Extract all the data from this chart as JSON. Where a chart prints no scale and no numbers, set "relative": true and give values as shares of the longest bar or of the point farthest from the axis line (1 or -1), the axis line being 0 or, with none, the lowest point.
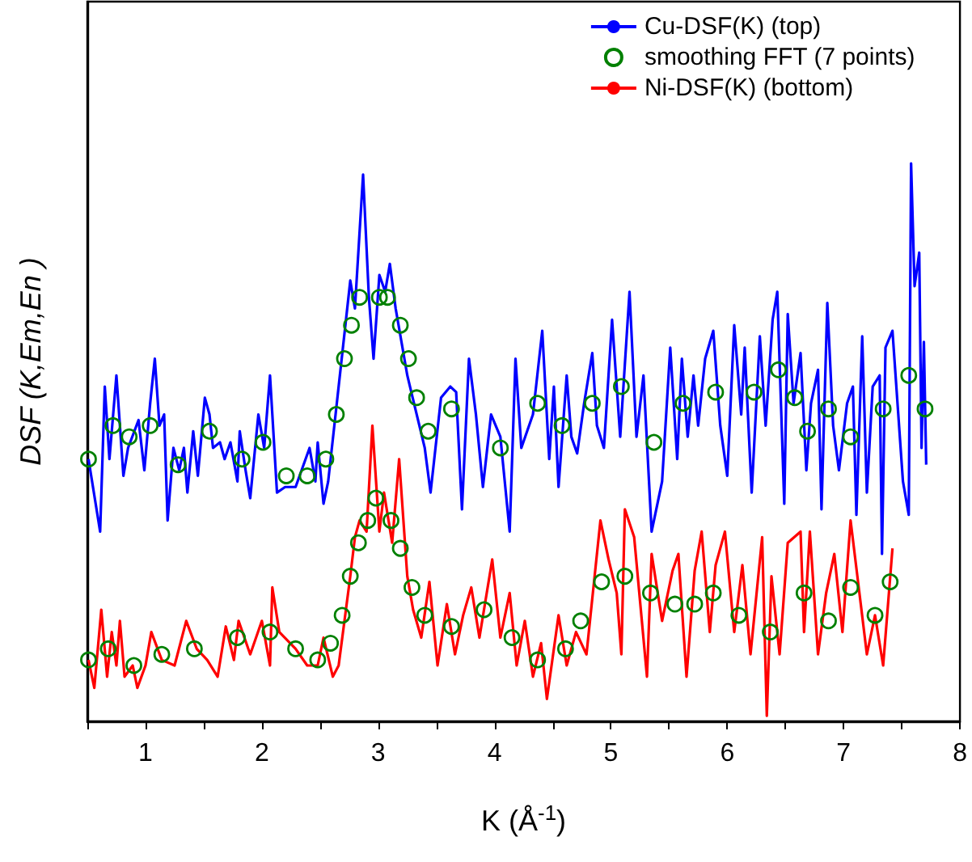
{
  "chart_data": {
    "type": "line",
    "relative": true,
    "xlabel": "K (Å$^{-1}$)",
    "ylabel": "DSF (K,Em,En )",
    "xlim": [
      0.5,
      8
    ],
    "xticks": [
      {
        "value": 0.5,
        "label": null
      },
      1,
      {
        "value": 1.5,
        "label": null
      },
      2,
      {
        "value": 2.5,
        "label": null
      },
      3,
      {
        "value": 3.5,
        "label": null
      },
      4,
      {
        "value": 4.5,
        "label": null
      },
      5,
      {
        "value": 5.5,
        "label": null
      },
      6,
      {
        "value": 6.5,
        "label": null
      },
      7,
      {
        "value": 7.5,
        "label": null
      },
      8
    ],
    "legend": "top right",
    "grid": false,
    "line_style": "solid",
    "series": [
      {
        "name": "Cu-DSF(K) (top)",
        "color": "#0000ff",
        "x": [
          0.51,
          0.61,
          0.65,
          0.69,
          0.75,
          0.81,
          0.85,
          0.94,
          0.99,
          1.04,
          1.08,
          1.12,
          1.16,
          1.19,
          1.24,
          1.29,
          1.33,
          1.36,
          1.41,
          1.45,
          1.51,
          1.55,
          1.58,
          1.64,
          1.68,
          1.73,
          1.79,
          1.81,
          1.86,
          1.9,
          1.97,
          2.02,
          2.07,
          2.13,
          2.2,
          2.29,
          2.41,
          2.46,
          2.48,
          2.53,
          2.57,
          2.66,
          2.76,
          2.8,
          2.87,
          2.92,
          2.96,
          3.01,
          3.06,
          3.1,
          3.15,
          3.25,
          3.4,
          3.45,
          3.54,
          3.62,
          3.67,
          3.72,
          3.78,
          3.84,
          3.9,
          3.97,
          4.05,
          4.13,
          4.18,
          4.23,
          4.33,
          4.41,
          4.47,
          4.51,
          4.55,
          4.62,
          4.66,
          4.71,
          4.77,
          4.84,
          4.88,
          4.94,
          5.01,
          5.08,
          5.16,
          5.22,
          5.28,
          5.35,
          5.44,
          5.51,
          5.57,
          5.61,
          5.66,
          5.71,
          5.75,
          5.81,
          5.88,
          5.94,
          6.0,
          6.06,
          6.12,
          6.15,
          6.21,
          6.28,
          6.33,
          6.39,
          6.43,
          6.49,
          6.52,
          6.57,
          6.63,
          6.68,
          6.72,
          6.78,
          6.81,
          6.86,
          6.91,
          6.96,
          7.03,
          7.08,
          7.11,
          7.16,
          7.2,
          7.25,
          7.31,
          7.33,
          7.36,
          7.42,
          7.51,
          7.56,
          7.58,
          7.61,
          7.65,
          7.67,
          7.69,
          7.71
        ],
        "values": [
          0.47,
          0.34,
          0.6,
          0.47,
          0.62,
          0.44,
          0.49,
          0.54,
          0.45,
          0.57,
          0.65,
          0.53,
          0.55,
          0.36,
          0.49,
          0.45,
          0.49,
          0.41,
          0.52,
          0.44,
          0.58,
          0.55,
          0.49,
          0.5,
          0.47,
          0.5,
          0.43,
          0.52,
          0.45,
          0.4,
          0.55,
          0.49,
          0.62,
          0.41,
          0.42,
          0.42,
          0.49,
          0.43,
          0.5,
          0.39,
          0.43,
          0.6,
          0.79,
          0.74,
          0.98,
          0.76,
          0.65,
          0.8,
          0.77,
          0.82,
          0.74,
          0.62,
          0.49,
          0.41,
          0.58,
          0.6,
          0.59,
          0.38,
          0.65,
          0.55,
          0.42,
          0.55,
          0.51,
          0.34,
          0.65,
          0.49,
          0.55,
          0.7,
          0.47,
          0.6,
          0.42,
          0.62,
          0.51,
          0.48,
          0.57,
          0.66,
          0.53,
          0.49,
          0.72,
          0.51,
          0.77,
          0.51,
          0.62,
          0.34,
          0.43,
          0.67,
          0.47,
          0.65,
          0.51,
          0.62,
          0.53,
          0.65,
          0.7,
          0.53,
          0.44,
          0.71,
          0.55,
          0.67,
          0.41,
          0.69,
          0.53,
          0.72,
          0.77,
          0.39,
          0.73,
          0.57,
          0.66,
          0.45,
          0.57,
          0.63,
          0.38,
          0.75,
          0.53,
          0.45,
          0.57,
          0.6,
          0.37,
          0.69,
          0.41,
          0.6,
          0.62,
          0.3,
          0.67,
          0.7,
          0.43,
          0.37,
          1.0,
          0.78,
          0.84,
          0.49,
          0.68,
          0.46
        ]
      },
      {
        "name": "smoothing FFT (7 points)",
        "type": "scatter",
        "marker": "circle",
        "color": "#008000",
        "x": [
          0.51,
          0.72,
          0.86,
          1.04,
          1.28,
          1.55,
          1.83,
          2.01,
          2.21,
          2.39,
          2.55,
          2.64,
          2.71,
          2.77,
          2.84,
          3.01,
          3.08,
          3.19,
          3.26,
          3.33,
          3.43,
          3.63,
          4.05,
          4.37,
          4.58,
          4.84,
          5.09,
          5.37,
          5.62,
          5.9,
          6.23,
          6.44,
          6.58,
          6.69,
          6.87,
          7.06,
          7.34,
          7.56,
          7.7
        ],
        "values": [
          0.47,
          0.53,
          0.51,
          0.53,
          0.46,
          0.52,
          0.47,
          0.5,
          0.44,
          0.44,
          0.47,
          0.55,
          0.65,
          0.71,
          0.76,
          0.76,
          0.76,
          0.71,
          0.65,
          0.58,
          0.52,
          0.56,
          0.49,
          0.57,
          0.53,
          0.57,
          0.6,
          0.5,
          0.57,
          0.59,
          0.59,
          0.63,
          0.58,
          0.52,
          0.56,
          0.51,
          0.56,
          0.62,
          0.56
        ]
      },
      {
        "name": "Ni-DSF(K) (bottom)",
        "color": "#ff0000",
        "x": [
          0.51,
          0.56,
          0.62,
          0.67,
          0.71,
          0.75,
          0.78,
          0.82,
          0.89,
          0.93,
          1.0,
          1.05,
          1.14,
          1.25,
          1.35,
          1.44,
          1.53,
          1.62,
          1.69,
          1.76,
          1.8,
          1.9,
          2.0,
          2.07,
          2.09,
          2.15,
          2.29,
          2.39,
          2.48,
          2.53,
          2.61,
          2.66,
          2.76,
          2.8,
          2.84,
          2.9,
          2.95,
          3.01,
          3.05,
          3.12,
          3.18,
          3.25,
          3.3,
          3.37,
          3.44,
          3.51,
          3.59,
          3.66,
          3.73,
          3.8,
          3.87,
          3.98,
          4.05,
          4.13,
          4.19,
          4.26,
          4.33,
          4.4,
          4.45,
          4.55,
          4.62,
          4.7,
          4.79,
          4.91,
          4.98,
          5.05,
          5.09,
          5.12,
          5.2,
          5.31,
          5.35,
          5.44,
          5.53,
          5.58,
          5.65,
          5.72,
          5.78,
          5.85,
          5.9,
          5.98,
          6.06,
          6.13,
          6.2,
          6.3,
          6.34,
          6.38,
          6.45,
          6.52,
          6.63,
          6.66,
          6.71,
          6.78,
          6.85,
          6.92,
          6.99,
          7.06,
          7.13,
          7.2,
          7.27,
          7.34,
          7.42
        ],
        "values": [
          0.11,
          0.06,
          0.2,
          0.08,
          0.16,
          0.1,
          0.18,
          0.08,
          0.1,
          0.06,
          0.1,
          0.16,
          0.11,
          0.1,
          0.18,
          0.13,
          0.11,
          0.08,
          0.17,
          0.11,
          0.18,
          0.12,
          0.18,
          0.1,
          0.24,
          0.16,
          0.13,
          0.1,
          0.1,
          0.15,
          0.08,
          0.1,
          0.26,
          0.33,
          0.36,
          0.34,
          0.53,
          0.34,
          0.41,
          0.32,
          0.47,
          0.26,
          0.2,
          0.15,
          0.25,
          0.1,
          0.21,
          0.12,
          0.19,
          0.24,
          0.15,
          0.29,
          0.15,
          0.23,
          0.1,
          0.18,
          0.08,
          0.14,
          0.04,
          0.19,
          0.1,
          0.16,
          0.12,
          0.36,
          0.29,
          0.23,
          0.12,
          0.38,
          0.33,
          0.08,
          0.3,
          0.18,
          0.27,
          0.3,
          0.08,
          0.27,
          0.34,
          0.16,
          0.28,
          0.34,
          0.16,
          0.28,
          0.12,
          0.33,
          0.01,
          0.26,
          0.12,
          0.32,
          0.34,
          0.16,
          0.34,
          0.12,
          0.23,
          0.3,
          0.16,
          0.36,
          0.24,
          0.12,
          0.19,
          0.1,
          0.31
        ]
      },
      {
        "type": "scatter",
        "marker": "circle",
        "color": "#008000",
        "x": [
          0.51,
          0.68,
          0.9,
          1.14,
          1.42,
          1.79,
          2.07,
          2.29,
          2.48,
          2.59,
          2.69,
          2.76,
          2.83,
          2.91,
          2.98,
          3.11,
          3.19,
          3.29,
          3.4,
          3.63,
          3.91,
          4.15,
          4.37,
          4.61,
          4.74,
          4.92,
          5.12,
          5.34,
          5.55,
          5.72,
          5.88,
          6.1,
          6.37,
          6.66,
          6.87,
          7.06,
          7.27,
          7.4
        ],
        "values": [
          0.11,
          0.13,
          0.1,
          0.12,
          0.13,
          0.15,
          0.16,
          0.13,
          0.11,
          0.14,
          0.19,
          0.26,
          0.32,
          0.36,
          0.4,
          0.36,
          0.31,
          0.24,
          0.19,
          0.17,
          0.2,
          0.15,
          0.11,
          0.13,
          0.18,
          0.25,
          0.26,
          0.23,
          0.21,
          0.21,
          0.23,
          0.19,
          0.16,
          0.23,
          0.18,
          0.24,
          0.19,
          0.25
        ]
      }
    ]
  }
}
